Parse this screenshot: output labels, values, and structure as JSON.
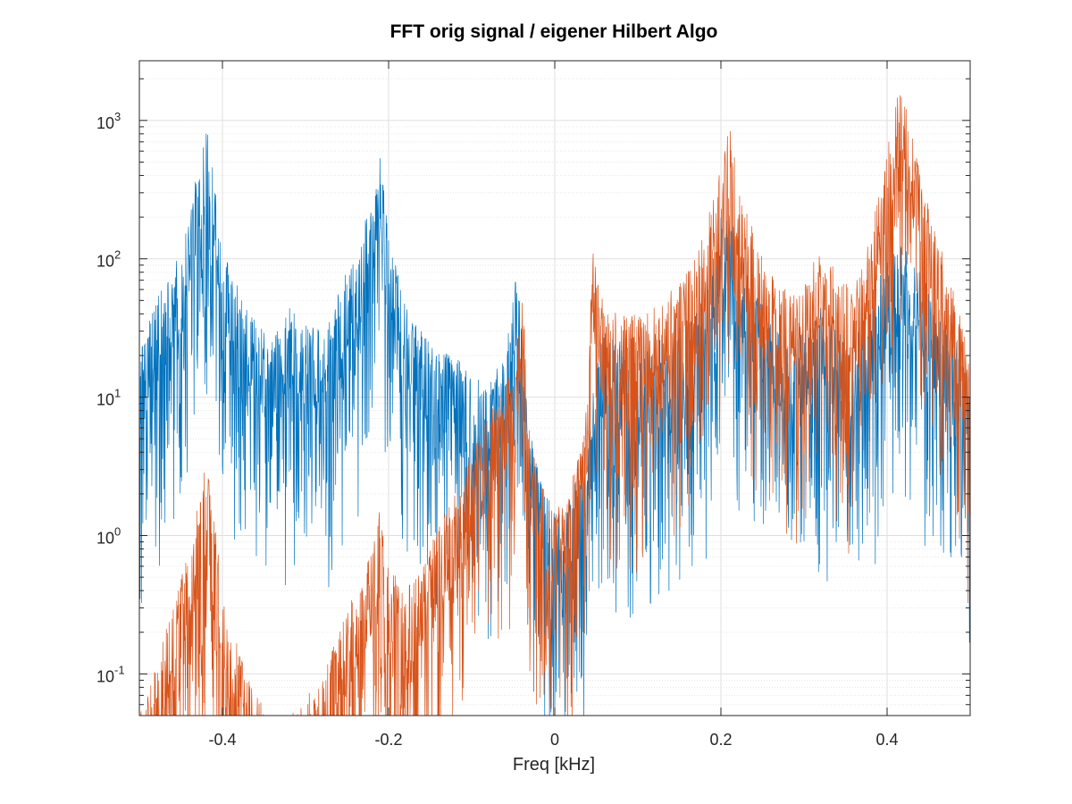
{
  "chart_data": {
    "type": "line",
    "title": "FFT orig signal / eigener Hilbert Algo",
    "xlabel": "Freq [kHz]",
    "ylabel": "",
    "xlim": [
      -0.5,
      0.5
    ],
    "ylim": [
      0.05,
      2700
    ],
    "yscale": "log",
    "grid": "on (major and minor)",
    "legend": "none",
    "x_ticks": [
      -0.4,
      -0.2,
      0,
      0.2,
      0.4
    ],
    "x_tick_labels": [
      "-0.4",
      "-0.2",
      "0",
      "0.2",
      "0.4"
    ],
    "y_tick_base": "10",
    "y_ticks": [
      0.1,
      1,
      10,
      100,
      1000
    ],
    "y_tick_exponents": [
      "-1",
      "0",
      "1",
      "2",
      "3"
    ],
    "series": [
      {
        "color": "#0072bd",
        "envelope": [
          [
            -0.5,
            20
          ],
          [
            -0.48,
            55
          ],
          [
            -0.46,
            80
          ],
          [
            -0.44,
            200
          ],
          [
            -0.42,
            1050
          ],
          [
            -0.41,
            500
          ],
          [
            -0.4,
            120
          ],
          [
            -0.38,
            60
          ],
          [
            -0.36,
            35
          ],
          [
            -0.34,
            25
          ],
          [
            -0.32,
            45
          ],
          [
            -0.3,
            35
          ],
          [
            -0.28,
            30
          ],
          [
            -0.26,
            60
          ],
          [
            -0.24,
            110
          ],
          [
            -0.22,
            280
          ],
          [
            -0.21,
            550
          ],
          [
            -0.2,
            150
          ],
          [
            -0.18,
            45
          ],
          [
            -0.16,
            30
          ],
          [
            -0.14,
            22
          ],
          [
            -0.12,
            20
          ],
          [
            -0.1,
            15
          ],
          [
            -0.08,
            12
          ],
          [
            -0.06,
            22
          ],
          [
            -0.045,
            90
          ],
          [
            -0.04,
            30
          ],
          [
            -0.03,
            6
          ],
          [
            -0.02,
            3
          ],
          [
            -0.01,
            2
          ],
          [
            0,
            1.5
          ],
          [
            0.01,
            1.5
          ],
          [
            0.02,
            2
          ],
          [
            0.03,
            3
          ],
          [
            0.04,
            4
          ],
          [
            0.05,
            20
          ],
          [
            0.06,
            30
          ],
          [
            0.08,
            25
          ],
          [
            0.1,
            20
          ],
          [
            0.12,
            25
          ],
          [
            0.14,
            30
          ],
          [
            0.16,
            35
          ],
          [
            0.18,
            60
          ],
          [
            0.2,
            200
          ],
          [
            0.21,
            230
          ],
          [
            0.22,
            150
          ],
          [
            0.24,
            60
          ],
          [
            0.26,
            35
          ],
          [
            0.28,
            25
          ],
          [
            0.3,
            30
          ],
          [
            0.32,
            45
          ],
          [
            0.34,
            30
          ],
          [
            0.36,
            25
          ],
          [
            0.38,
            50
          ],
          [
            0.4,
            100
          ],
          [
            0.42,
            130
          ],
          [
            0.44,
            80
          ],
          [
            0.46,
            45
          ],
          [
            0.48,
            30
          ],
          [
            0.5,
            15
          ]
        ]
      },
      {
        "color": "#d95319",
        "envelope": [
          [
            -0.5,
            0.06
          ],
          [
            -0.48,
            0.12
          ],
          [
            -0.46,
            0.3
          ],
          [
            -0.44,
            0.8
          ],
          [
            -0.42,
            3.5
          ],
          [
            -0.41,
            1.5
          ],
          [
            -0.4,
            0.4
          ],
          [
            -0.38,
            0.15
          ],
          [
            -0.36,
            0.07
          ],
          [
            -0.34,
            0.05
          ],
          [
            -0.32,
            0.05
          ],
          [
            -0.3,
            0.07
          ],
          [
            -0.28,
            0.1
          ],
          [
            -0.26,
            0.2
          ],
          [
            -0.24,
            0.4
          ],
          [
            -0.22,
            0.8
          ],
          [
            -0.21,
            1.6
          ],
          [
            -0.2,
            0.6
          ],
          [
            -0.18,
            0.4
          ],
          [
            -0.16,
            0.6
          ],
          [
            -0.14,
            1.2
          ],
          [
            -0.12,
            2
          ],
          [
            -0.1,
            4
          ],
          [
            -0.08,
            8
          ],
          [
            -0.06,
            12
          ],
          [
            -0.045,
            25
          ],
          [
            -0.04,
            90
          ],
          [
            -0.03,
            6
          ],
          [
            -0.02,
            3
          ],
          [
            -0.01,
            2
          ],
          [
            0,
            1.5
          ],
          [
            0.01,
            1.8
          ],
          [
            0.02,
            2.5
          ],
          [
            0.03,
            4
          ],
          [
            0.04,
            10
          ],
          [
            0.045,
            120
          ],
          [
            0.06,
            50
          ],
          [
            0.08,
            40
          ],
          [
            0.1,
            40
          ],
          [
            0.12,
            45
          ],
          [
            0.14,
            60
          ],
          [
            0.16,
            80
          ],
          [
            0.18,
            150
          ],
          [
            0.2,
            500
          ],
          [
            0.21,
            950
          ],
          [
            0.22,
            400
          ],
          [
            0.24,
            150
          ],
          [
            0.26,
            80
          ],
          [
            0.28,
            60
          ],
          [
            0.3,
            80
          ],
          [
            0.32,
            120
          ],
          [
            0.34,
            80
          ],
          [
            0.36,
            60
          ],
          [
            0.38,
            150
          ],
          [
            0.4,
            600
          ],
          [
            0.41,
            1500
          ],
          [
            0.42,
            1900
          ],
          [
            0.44,
            400
          ],
          [
            0.46,
            150
          ],
          [
            0.48,
            60
          ],
          [
            0.5,
            20
          ]
        ]
      }
    ]
  }
}
